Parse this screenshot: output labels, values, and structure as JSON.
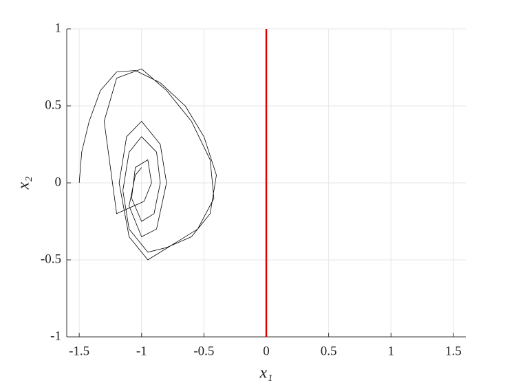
{
  "chart_data": {
    "type": "line",
    "xlabel": "x₁",
    "ylabel": "x₂",
    "xlim": [
      -1.6,
      1.6
    ],
    "ylim": [
      -1,
      1
    ],
    "xticks": [
      -1.5,
      -1,
      -0.5,
      0,
      0.5,
      1,
      1.5
    ],
    "yticks": [
      -1,
      -0.5,
      0,
      0.5,
      1
    ],
    "grid": true,
    "series": [
      {
        "color": "#000000",
        "x": [
          -1.5,
          -1.48,
          -1.42,
          -1.33,
          -1.2,
          -1.05,
          -0.85,
          -0.65,
          -0.5,
          -0.4,
          -0.45,
          -0.6,
          -0.8,
          -0.95,
          -1.1,
          -1.15,
          -1.1,
          -1.0,
          -0.88,
          -0.85,
          -0.9,
          -1.0,
          -1.08,
          -1.05,
          -0.95,
          -0.92,
          -0.98,
          -1.2,
          -1.25,
          -1.3,
          -1.2,
          -1.0,
          -0.8,
          -0.6,
          -0.45,
          -0.42,
          -0.55,
          -0.75,
          -0.95,
          -1.1,
          -1.18,
          -1.12,
          -1.0,
          -0.85,
          -0.8,
          -0.88,
          -1.0,
          -1.1,
          -1.05,
          -1.0
        ],
        "values": [
          0,
          0.2,
          0.4,
          0.6,
          0.72,
          0.73,
          0.65,
          0.5,
          0.3,
          0.05,
          -0.2,
          -0.35,
          -0.42,
          -0.45,
          -0.3,
          -0.05,
          0.2,
          0.3,
          0.2,
          0.0,
          -0.2,
          -0.25,
          -0.1,
          0.1,
          0.15,
          0.0,
          -0.12,
          -0.2,
          0.1,
          0.4,
          0.68,
          0.74,
          0.6,
          0.4,
          0.15,
          -0.1,
          -0.3,
          -0.4,
          -0.5,
          -0.35,
          0,
          0.3,
          0.4,
          0.25,
          0,
          -0.3,
          -0.35,
          -0.15,
          0.05,
          0.1
        ]
      },
      {
        "color": "#e00000",
        "x": [
          0,
          0
        ],
        "values": [
          -1,
          1
        ]
      }
    ]
  }
}
